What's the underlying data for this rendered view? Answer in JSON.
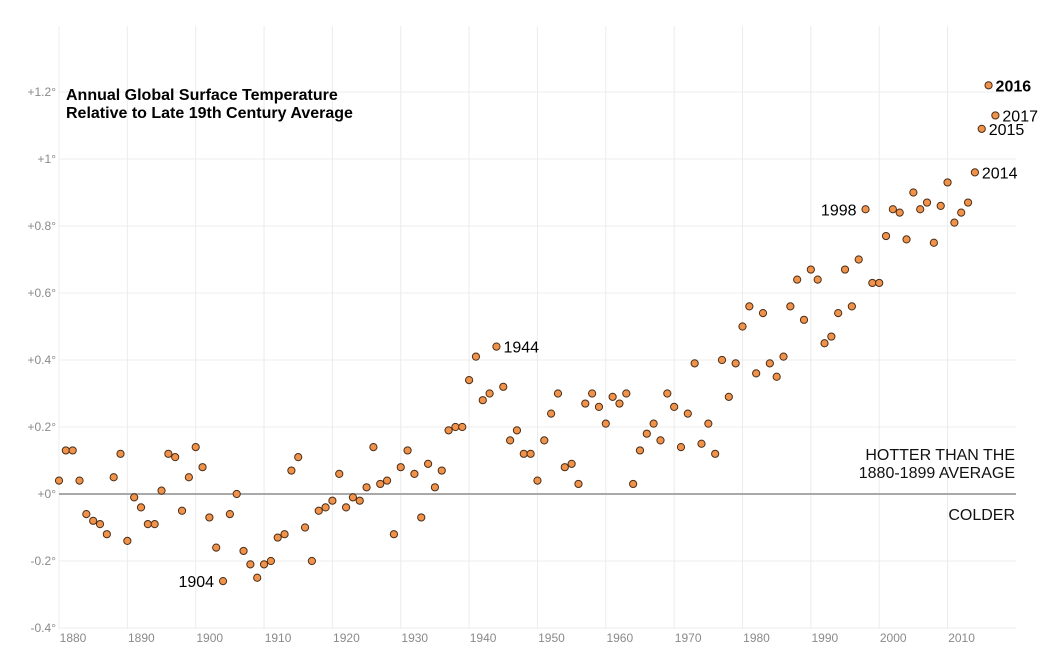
{
  "chart_data": {
    "type": "scatter",
    "title_lines": [
      "Annual Global Surface Temperature",
      "Relative to Late 19th Century Average"
    ],
    "xlabel": "",
    "ylabel": "",
    "xlim": [
      1880,
      2017
    ],
    "ylim": [
      -0.4,
      1.4
    ],
    "grid": true,
    "x_ticks": [
      {
        "value": 1880,
        "label": "1880"
      },
      {
        "value": 1890,
        "label": "1890"
      },
      {
        "value": 1900,
        "label": "1900"
      },
      {
        "value": 1910,
        "label": "1910"
      },
      {
        "value": 1920,
        "label": "1920"
      },
      {
        "value": 1930,
        "label": "1930"
      },
      {
        "value": 1940,
        "label": "1940"
      },
      {
        "value": 1950,
        "label": "1950"
      },
      {
        "value": 1960,
        "label": "1960"
      },
      {
        "value": 1970,
        "label": "1970"
      },
      {
        "value": 1980,
        "label": "1980"
      },
      {
        "value": 1990,
        "label": "1990"
      },
      {
        "value": 2000,
        "label": "2000"
      },
      {
        "value": 2010,
        "label": "2010"
      }
    ],
    "y_ticks": [
      {
        "value": -0.4,
        "label": "-0.4°"
      },
      {
        "value": -0.2,
        "label": "-0.2°"
      },
      {
        "value": 0,
        "label": "+0°"
      },
      {
        "value": 0.2,
        "label": "+0.2°"
      },
      {
        "value": 0.4,
        "label": "+0.4°"
      },
      {
        "value": 0.6,
        "label": "+0.6°"
      },
      {
        "value": 0.8,
        "label": "+0.8°"
      },
      {
        "value": 1.0,
        "label": "+1°"
      },
      {
        "value": 1.2,
        "label": "+1.2°"
      }
    ],
    "marker_color": "#f0924a",
    "marker_edge": "#4a2e18",
    "zero_line_color": "#a9a9a9",
    "region_labels": {
      "above_lines": [
        "HOTTER THAN THE",
        "1880-1899 AVERAGE"
      ],
      "below": "COLDER"
    },
    "annotations": [
      {
        "year": 1904,
        "label": "1904",
        "side": "left",
        "bold": false
      },
      {
        "year": 1944,
        "label": "1944",
        "side": "right",
        "bold": false
      },
      {
        "year": 1998,
        "label": "1998",
        "side": "left",
        "bold": false
      },
      {
        "year": 2014,
        "label": "2014",
        "side": "right",
        "bold": false
      },
      {
        "year": 2015,
        "label": "2015",
        "side": "right",
        "bold": false
      },
      {
        "year": 2016,
        "label": "2016",
        "side": "right",
        "bold": true
      },
      {
        "year": 2017,
        "label": "2017",
        "side": "right",
        "bold": false
      }
    ],
    "points": [
      {
        "year": 1880,
        "value": 0.04
      },
      {
        "year": 1881,
        "value": 0.13
      },
      {
        "year": 1882,
        "value": 0.13
      },
      {
        "year": 1883,
        "value": 0.04
      },
      {
        "year": 1884,
        "value": -0.06
      },
      {
        "year": 1885,
        "value": -0.08
      },
      {
        "year": 1886,
        "value": -0.09
      },
      {
        "year": 1887,
        "value": -0.12
      },
      {
        "year": 1888,
        "value": 0.05
      },
      {
        "year": 1889,
        "value": 0.12
      },
      {
        "year": 1890,
        "value": -0.14
      },
      {
        "year": 1891,
        "value": -0.01
      },
      {
        "year": 1892,
        "value": -0.04
      },
      {
        "year": 1893,
        "value": -0.09
      },
      {
        "year": 1894,
        "value": -0.09
      },
      {
        "year": 1895,
        "value": 0.01
      },
      {
        "year": 1896,
        "value": 0.12
      },
      {
        "year": 1897,
        "value": 0.11
      },
      {
        "year": 1898,
        "value": -0.05
      },
      {
        "year": 1899,
        "value": 0.05
      },
      {
        "year": 1900,
        "value": 0.14
      },
      {
        "year": 1901,
        "value": 0.08
      },
      {
        "year": 1902,
        "value": -0.07
      },
      {
        "year": 1903,
        "value": -0.16
      },
      {
        "year": 1904,
        "value": -0.26
      },
      {
        "year": 1905,
        "value": -0.06
      },
      {
        "year": 1906,
        "value": 0.0
      },
      {
        "year": 1907,
        "value": -0.17
      },
      {
        "year": 1908,
        "value": -0.21
      },
      {
        "year": 1909,
        "value": -0.25
      },
      {
        "year": 1910,
        "value": -0.21
      },
      {
        "year": 1911,
        "value": -0.2
      },
      {
        "year": 1912,
        "value": -0.13
      },
      {
        "year": 1913,
        "value": -0.12
      },
      {
        "year": 1914,
        "value": 0.07
      },
      {
        "year": 1915,
        "value": 0.11
      },
      {
        "year": 1916,
        "value": -0.1
      },
      {
        "year": 1917,
        "value": -0.2
      },
      {
        "year": 1918,
        "value": -0.05
      },
      {
        "year": 1919,
        "value": -0.04
      },
      {
        "year": 1920,
        "value": -0.02
      },
      {
        "year": 1921,
        "value": 0.06
      },
      {
        "year": 1922,
        "value": -0.04
      },
      {
        "year": 1923,
        "value": -0.01
      },
      {
        "year": 1924,
        "value": -0.02
      },
      {
        "year": 1925,
        "value": 0.02
      },
      {
        "year": 1926,
        "value": 0.14
      },
      {
        "year": 1927,
        "value": 0.03
      },
      {
        "year": 1928,
        "value": 0.04
      },
      {
        "year": 1929,
        "value": -0.12
      },
      {
        "year": 1930,
        "value": 0.08
      },
      {
        "year": 1931,
        "value": 0.13
      },
      {
        "year": 1932,
        "value": 0.06
      },
      {
        "year": 1933,
        "value": -0.07
      },
      {
        "year": 1934,
        "value": 0.09
      },
      {
        "year": 1935,
        "value": 0.02
      },
      {
        "year": 1936,
        "value": 0.07
      },
      {
        "year": 1937,
        "value": 0.19
      },
      {
        "year": 1938,
        "value": 0.2
      },
      {
        "year": 1939,
        "value": 0.2
      },
      {
        "year": 1940,
        "value": 0.34
      },
      {
        "year": 1941,
        "value": 0.41
      },
      {
        "year": 1942,
        "value": 0.28
      },
      {
        "year": 1943,
        "value": 0.3
      },
      {
        "year": 1944,
        "value": 0.44
      },
      {
        "year": 1945,
        "value": 0.32
      },
      {
        "year": 1946,
        "value": 0.16
      },
      {
        "year": 1947,
        "value": 0.19
      },
      {
        "year": 1948,
        "value": 0.12
      },
      {
        "year": 1949,
        "value": 0.12
      },
      {
        "year": 1950,
        "value": 0.04
      },
      {
        "year": 1951,
        "value": 0.16
      },
      {
        "year": 1952,
        "value": 0.24
      },
      {
        "year": 1953,
        "value": 0.3
      },
      {
        "year": 1954,
        "value": 0.08
      },
      {
        "year": 1955,
        "value": 0.09
      },
      {
        "year": 1956,
        "value": 0.03
      },
      {
        "year": 1957,
        "value": 0.27
      },
      {
        "year": 1958,
        "value": 0.3
      },
      {
        "year": 1959,
        "value": 0.26
      },
      {
        "year": 1960,
        "value": 0.21
      },
      {
        "year": 1961,
        "value": 0.29
      },
      {
        "year": 1962,
        "value": 0.27
      },
      {
        "year": 1963,
        "value": 0.3
      },
      {
        "year": 1964,
        "value": 0.03
      },
      {
        "year": 1965,
        "value": 0.13
      },
      {
        "year": 1966,
        "value": 0.18
      },
      {
        "year": 1967,
        "value": 0.21
      },
      {
        "year": 1968,
        "value": 0.16
      },
      {
        "year": 1969,
        "value": 0.3
      },
      {
        "year": 1970,
        "value": 0.26
      },
      {
        "year": 1971,
        "value": 0.14
      },
      {
        "year": 1972,
        "value": 0.24
      },
      {
        "year": 1973,
        "value": 0.39
      },
      {
        "year": 1974,
        "value": 0.15
      },
      {
        "year": 1975,
        "value": 0.21
      },
      {
        "year": 1976,
        "value": 0.12
      },
      {
        "year": 1977,
        "value": 0.4
      },
      {
        "year": 1978,
        "value": 0.29
      },
      {
        "year": 1979,
        "value": 0.39
      },
      {
        "year": 1980,
        "value": 0.5
      },
      {
        "year": 1981,
        "value": 0.56
      },
      {
        "year": 1982,
        "value": 0.36
      },
      {
        "year": 1983,
        "value": 0.54
      },
      {
        "year": 1984,
        "value": 0.39
      },
      {
        "year": 1985,
        "value": 0.35
      },
      {
        "year": 1986,
        "value": 0.41
      },
      {
        "year": 1987,
        "value": 0.56
      },
      {
        "year": 1988,
        "value": 0.64
      },
      {
        "year": 1989,
        "value": 0.52
      },
      {
        "year": 1990,
        "value": 0.67
      },
      {
        "year": 1991,
        "value": 0.64
      },
      {
        "year": 1992,
        "value": 0.45
      },
      {
        "year": 1993,
        "value": 0.47
      },
      {
        "year": 1994,
        "value": 0.54
      },
      {
        "year": 1995,
        "value": 0.67
      },
      {
        "year": 1996,
        "value": 0.56
      },
      {
        "year": 1997,
        "value": 0.7
      },
      {
        "year": 1998,
        "value": 0.85
      },
      {
        "year": 1999,
        "value": 0.63
      },
      {
        "year": 2000,
        "value": 0.63
      },
      {
        "year": 2001,
        "value": 0.77
      },
      {
        "year": 2002,
        "value": 0.85
      },
      {
        "year": 2003,
        "value": 0.84
      },
      {
        "year": 2004,
        "value": 0.76
      },
      {
        "year": 2005,
        "value": 0.9
      },
      {
        "year": 2006,
        "value": 0.85
      },
      {
        "year": 2007,
        "value": 0.87
      },
      {
        "year": 2008,
        "value": 0.75
      },
      {
        "year": 2009,
        "value": 0.86
      },
      {
        "year": 2010,
        "value": 0.93
      },
      {
        "year": 2011,
        "value": 0.81
      },
      {
        "year": 2012,
        "value": 0.84
      },
      {
        "year": 2013,
        "value": 0.87
      },
      {
        "year": 2014,
        "value": 0.96
      },
      {
        "year": 2015,
        "value": 1.09
      },
      {
        "year": 2016,
        "value": 1.22
      },
      {
        "year": 2017,
        "value": 1.13
      }
    ]
  }
}
